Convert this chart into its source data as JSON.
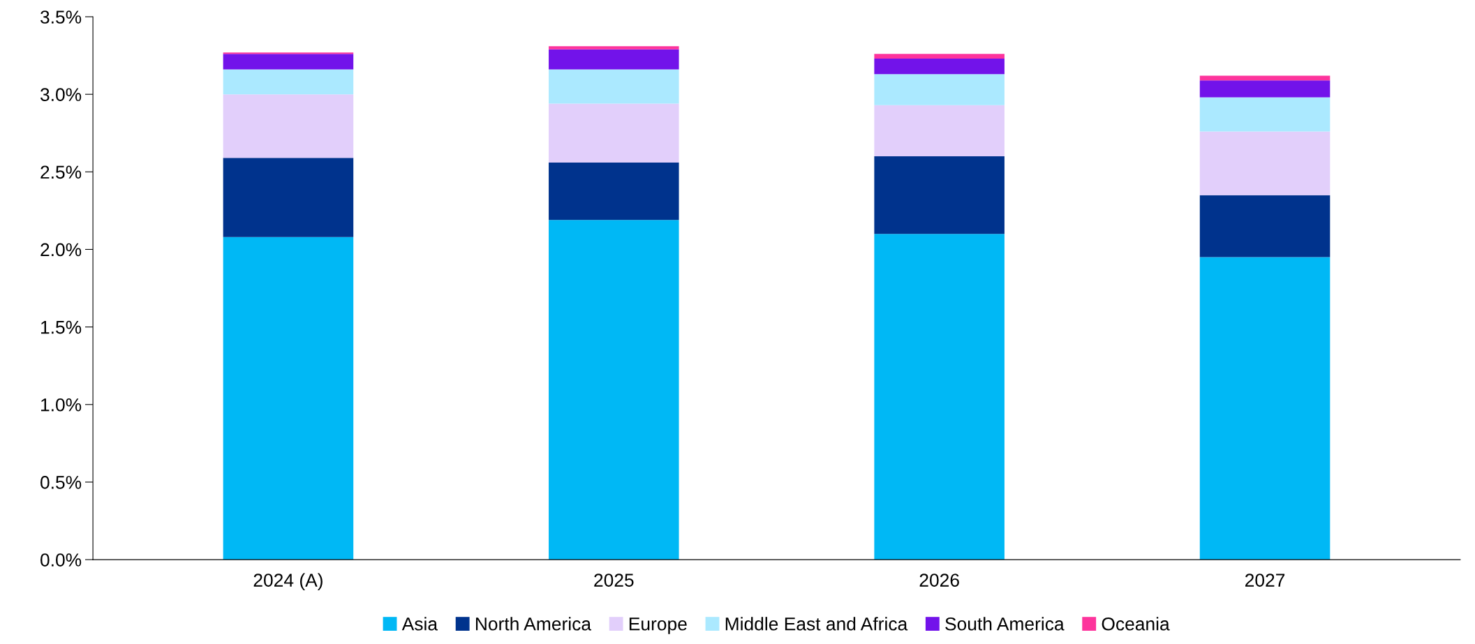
{
  "chart_data": {
    "type": "bar",
    "stacked": true,
    "categories": [
      "2024 (A)",
      "2025",
      "2026",
      "2027"
    ],
    "series": [
      {
        "name": "Asia",
        "color": "#00b8f5",
        "values": [
          2.08,
          2.19,
          2.1,
          1.95
        ]
      },
      {
        "name": "North America",
        "color": "#00338d",
        "values": [
          0.51,
          0.37,
          0.5,
          0.4
        ]
      },
      {
        "name": "Europe",
        "color": "#e2cffb",
        "values": [
          0.41,
          0.38,
          0.33,
          0.41
        ]
      },
      {
        "name": "Middle East and Africa",
        "color": "#abe9ff",
        "values": [
          0.16,
          0.22,
          0.2,
          0.22
        ]
      },
      {
        "name": "South America",
        "color": "#7213ea",
        "values": [
          0.1,
          0.13,
          0.1,
          0.11
        ]
      },
      {
        "name": "Oceania",
        "color": "#fd349c",
        "values": [
          0.01,
          0.02,
          0.03,
          0.03
        ]
      }
    ],
    "ylim": [
      0,
      3.5
    ],
    "yticks": [
      {
        "value": 0,
        "label": "0.0%"
      },
      {
        "value": 0.5,
        "label": "0.5%"
      },
      {
        "value": 1,
        "label": "1.0%"
      },
      {
        "value": 1.5,
        "label": "1.5%"
      },
      {
        "value": 2,
        "label": "2.0%"
      },
      {
        "value": 2.5,
        "label": "2.5%"
      },
      {
        "value": 3,
        "label": "3.0%"
      },
      {
        "value": 3.5,
        "label": "3.5%"
      }
    ],
    "grid": false,
    "legend": "bottom"
  }
}
